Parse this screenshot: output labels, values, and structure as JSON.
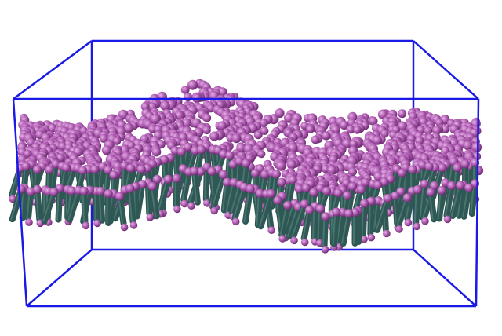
{
  "scene": {
    "description_hidden": "",
    "background_color": "#ffffff",
    "box_color": "#1a1ae6",
    "head_color": "#b05cb3",
    "head_highlight": "#d99ad9",
    "tail_color": "#2f5753",
    "tail_highlight": "#4f7d78"
  }
}
